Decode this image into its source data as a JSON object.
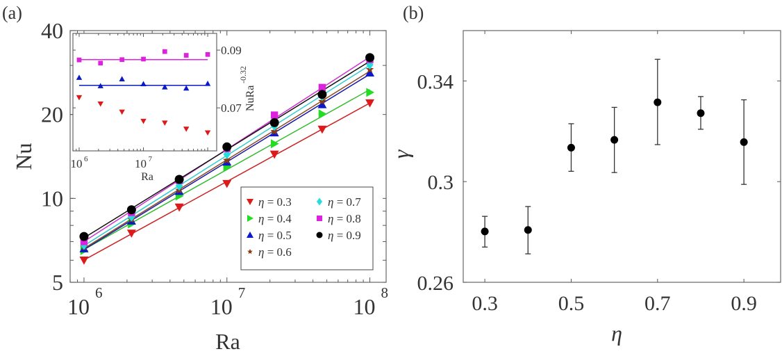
{
  "panels": {
    "a_label": "(a)",
    "b_label": "(b)"
  },
  "chart_data": [
    {
      "id": "a-main",
      "type": "line",
      "title": "",
      "xlabel": "Ra",
      "ylabel": "Nu",
      "xscale": "log",
      "yscale": "log",
      "xlim": [
        800000,
        130000000
      ],
      "ylim": [
        5,
        40
      ],
      "xticks": [
        {
          "value": 1000000,
          "base": "10",
          "exp": "6"
        },
        {
          "value": 10000000,
          "base": "10",
          "exp": "7"
        },
        {
          "value": 100000000,
          "base": "10",
          "exp": "8"
        }
      ],
      "yticks": [
        {
          "value": 5,
          "label": "5"
        },
        {
          "value": 10,
          "label": "10"
        },
        {
          "value": 20,
          "label": "20"
        },
        {
          "value": 40,
          "label": "40"
        }
      ],
      "grid": false,
      "legend": {
        "position": "bottom-right",
        "columns": 2,
        "prefix": "η",
        "eq": " = "
      },
      "x": [
        1000000,
        2150000,
        4640000,
        10000000,
        21500000,
        46400000,
        100000000
      ],
      "series": [
        {
          "name": "η = 0.3",
          "eta": "0.3",
          "color": "#dd1a1a",
          "line_color": "#cc2222",
          "marker": "triangle-down",
          "values": [
            6.0,
            7.5,
            9.3,
            11.3,
            14.4,
            17.7,
            22.0
          ]
        },
        {
          "name": "η = 0.4",
          "eta": "0.4",
          "color": "#22dd22",
          "line_color": "#33bb33",
          "marker": "triangle-right",
          "values": [
            6.5,
            8.1,
            10.2,
            13.0,
            15.7,
            20.1,
            24.0
          ]
        },
        {
          "name": "η = 0.5",
          "eta": "0.5",
          "color": "#0a1ac8",
          "line_color": "#1a1aa8",
          "marker": "triangle-up",
          "values": [
            6.6,
            8.3,
            10.6,
            13.5,
            17.2,
            21.7,
            28.2
          ]
        },
        {
          "name": "η = 0.6",
          "eta": "0.6",
          "color": "#8b3a14",
          "line_color": "#8b4a24",
          "marker": "star",
          "values": [
            6.7,
            8.4,
            10.7,
            13.7,
            17.4,
            22.3,
            29.0
          ]
        },
        {
          "name": "η = 0.7",
          "eta": "0.7",
          "color": "#22dddd",
          "line_color": "#33cccc",
          "marker": "diamond",
          "values": [
            6.8,
            8.6,
            11.1,
            14.4,
            18.2,
            23.3,
            30.2
          ]
        },
        {
          "name": "η = 0.8",
          "eta": "0.8",
          "color": "#dd22dd",
          "line_color": "#cc33cc",
          "marker": "square",
          "values": [
            7.0,
            8.9,
            11.6,
            15.1,
            19.9,
            25.0,
            31.5
          ]
        },
        {
          "name": "η = 0.9",
          "eta": "0.9",
          "color": "#000000",
          "line_color": "#111111",
          "marker": "circle",
          "values": [
            7.3,
            9.1,
            11.7,
            15.3,
            18.7,
            23.6,
            32.0
          ]
        }
      ]
    },
    {
      "id": "a-inset",
      "type": "scatter",
      "title": "",
      "xlabel": "Ra",
      "ylabel": "NuRa",
      "ylabel_exp": "-0.32",
      "xscale": "log",
      "xlim": [
        800000,
        138000000
      ],
      "ylim": [
        0.0551,
        0.0958
      ],
      "xticks": [
        {
          "value": 1000000,
          "base": "10",
          "exp": "6"
        },
        {
          "value": 10000000,
          "base": "10",
          "exp": "7"
        }
      ],
      "yticks": [
        {
          "value": 0.07,
          "label": "0.07"
        },
        {
          "value": 0.09,
          "label": "0.09"
        }
      ],
      "grid": false,
      "x": [
        1000000,
        2150000,
        4640000,
        10000000,
        21500000,
        46400000,
        100000000
      ],
      "series": [
        {
          "name": "η = 0.3",
          "color": "#dd1a1a",
          "marker": "triangle-down",
          "values": [
            0.0736,
            0.0714,
            0.0686,
            0.0654,
            0.0648,
            0.0627,
            0.0614
          ],
          "fit": null
        },
        {
          "name": "η = 0.5",
          "color": "#0a1ac8",
          "marker": "triangle-up",
          "values": [
            0.0805,
            0.0776,
            0.08,
            0.0783,
            0.0772,
            0.0768,
            0.0784
          ],
          "fit": 0.0778
        },
        {
          "name": "η = 0.8",
          "color": "#dd22dd",
          "marker": "square",
          "values": [
            0.0866,
            0.0855,
            0.0867,
            0.0869,
            0.0895,
            0.0882,
            0.0885
          ],
          "fit": 0.0867
        }
      ]
    },
    {
      "id": "b",
      "type": "scatter",
      "title": "",
      "xlabel": "η",
      "ylabel": "γ",
      "xlim": [
        0.25,
        0.985
      ],
      "ylim": [
        0.26,
        0.36
      ],
      "xticks": [
        {
          "value": 0.3,
          "label": "0.3"
        },
        {
          "value": 0.5,
          "label": "0.5"
        },
        {
          "value": 0.7,
          "label": "0.7"
        },
        {
          "value": 0.9,
          "label": "0.9"
        }
      ],
      "yticks": [
        {
          "value": 0.26,
          "label": "0.26"
        },
        {
          "value": 0.3,
          "label": "0.3"
        },
        {
          "value": 0.34,
          "label": "0.34"
        }
      ],
      "grid": false,
      "x": [
        0.3,
        0.4,
        0.5,
        0.6,
        0.7,
        0.8,
        0.9
      ],
      "series": [
        {
          "name": "γ",
          "color": "#000000",
          "marker": "circle",
          "values": [
            0.2802,
            0.2808,
            0.3135,
            0.3166,
            0.3315,
            0.3272,
            0.3157
          ],
          "err_upper": [
            0.2862,
            0.2901,
            0.323,
            0.3295,
            0.3486,
            0.3338,
            0.3325
          ],
          "err_lower": [
            0.274,
            0.2713,
            0.3041,
            0.3036,
            0.3147,
            0.3208,
            0.2989
          ]
        }
      ]
    }
  ]
}
